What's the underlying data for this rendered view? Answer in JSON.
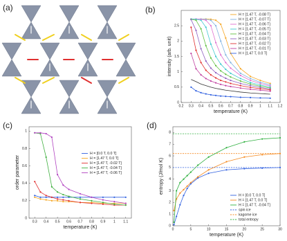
{
  "diagram": {
    "label": "(a)"
  },
  "chart_data": [
    {
      "type": "line",
      "label": "(b)",
      "xlabel": "temperature (K)",
      "ylabel": "intensity (arb. unit)",
      "xlim": [
        0.2,
        1.2
      ],
      "xticks": [
        0.2,
        0.3,
        0.4,
        0.5,
        0.6,
        0.7,
        0.8,
        0.9,
        1,
        1.1,
        1.2
      ],
      "ylim": [
        0,
        3
      ],
      "yticks": [
        0,
        0.5,
        1,
        1.5,
        2,
        2.5
      ],
      "legend": "upper right",
      "x": [
        0.3,
        0.35,
        0.4,
        0.45,
        0.5,
        0.55,
        0.6,
        0.65,
        0.7,
        0.8,
        0.9,
        1,
        1.1
      ],
      "series": [
        {
          "name": "H = [1.47 T, -0.08 T]",
          "color": "#f5a623",
          "values": [
            2.72,
            2.72,
            2.72,
            2.72,
            2.71,
            2.68,
            2.55,
            2.1,
            1.6,
            1.1,
            0.85,
            0.72,
            0.62
          ]
        },
        {
          "name": "H = [1.47 T, -0.07 T]",
          "color": "#7fb3e0",
          "values": [
            2.72,
            2.72,
            2.72,
            2.71,
            2.68,
            2.5,
            2.0,
            1.55,
            1.3,
            0.95,
            0.78,
            0.66,
            0.58
          ]
        },
        {
          "name": "H = [1.47 T, -0.06 T]",
          "color": "#e070d0",
          "values": [
            2.72,
            2.72,
            2.71,
            2.68,
            2.5,
            1.95,
            1.55,
            1.3,
            1.12,
            0.88,
            0.72,
            0.62,
            0.54
          ]
        },
        {
          "name": "H = [1.47 T, -0.05 T]",
          "color": "#40c8d0",
          "values": [
            2.72,
            2.71,
            2.68,
            2.45,
            1.9,
            1.5,
            1.25,
            1.08,
            0.95,
            0.78,
            0.65,
            0.57,
            0.5
          ]
        },
        {
          "name": "H = [1.47 T, -0.04 T]",
          "color": "#60c040",
          "values": [
            2.71,
            2.68,
            2.4,
            1.85,
            1.45,
            1.2,
            1.03,
            0.92,
            0.83,
            0.7,
            0.6,
            0.53,
            0.47
          ]
        },
        {
          "name": "H = [1.47 T, -0.03 T]",
          "color": "#9060c0",
          "values": [
            2.7,
            2.35,
            1.75,
            1.35,
            1.12,
            0.97,
            0.87,
            0.79,
            0.72,
            0.62,
            0.55,
            0.49,
            0.44
          ]
        },
        {
          "name": "H = [1.47 T, -0.02 T]",
          "color": "#e03030",
          "values": [
            2.45,
            1.7,
            1.3,
            1.05,
            0.9,
            0.8,
            0.72,
            0.67,
            0.62,
            0.55,
            0.49,
            0.45,
            0.41
          ]
        },
        {
          "name": "H = [1.47 T, -0.01 T]",
          "color": "#c040a0",
          "values": [
            1.6,
            1.1,
            0.9,
            0.78,
            0.7,
            0.64,
            0.59,
            0.55,
            0.52,
            0.47,
            0.43,
            0.4,
            0.37
          ]
        },
        {
          "name": "H = [1.47 T, 0.0 T]",
          "color": "#3060e0",
          "values": [
            0.5,
            0.38,
            0.32,
            0.28,
            0.25,
            0.23,
            0.21,
            0.2,
            0.19,
            0.17,
            0.16,
            0.15,
            0.14
          ]
        },
        {
          "name": null,
          "color": "#333333",
          "marker": false,
          "values": [
            0.75,
            0.68,
            0.6,
            0.55,
            0.5,
            0.46,
            0.43,
            0.4,
            0.38,
            0.34,
            0.31,
            0.29,
            0.27
          ]
        }
      ]
    },
    {
      "type": "line",
      "label": "(c)",
      "xlabel": "temperature (K)",
      "ylabel": "order parameter",
      "xlim": [
        0.25,
        1.15
      ],
      "xticks": [
        0.3,
        0.4,
        0.5,
        0.6,
        0.7,
        0.8,
        0.9,
        1,
        1.1
      ],
      "ylim": [
        0,
        1.05
      ],
      "yticks": [
        0,
        0.2,
        0.4,
        0.6,
        0.8,
        1
      ],
      "legend": "center right",
      "x": [
        0.3,
        0.35,
        0.4,
        0.45,
        0.5,
        0.55,
        0.6,
        0.7,
        0.8,
        0.9,
        1,
        1.1
      ],
      "series": [
        {
          "name": "H = [0.0 T, 0.0 T]",
          "color": "#3060e0",
          "values": [
            0.26,
            0.24,
            0.24,
            0.24,
            0.24,
            0.24,
            0.24,
            0.24,
            0.24,
            0.24,
            0.24,
            0.24
          ]
        },
        {
          "name": "H = [1.47 T, 0.0 T]",
          "color": "#f5a623",
          "values": [
            0.24,
            0.22,
            0.21,
            0.2,
            0.2,
            0.19,
            0.19,
            0.18,
            0.18,
            0.17,
            0.17,
            0.17
          ]
        },
        {
          "name": "H = [1.47 T, -0.02 T]",
          "color": "#e03030",
          "values": [
            0.42,
            0.3,
            0.26,
            0.24,
            0.22,
            0.21,
            0.2,
            0.18,
            0.17,
            0.16,
            0.15,
            0.15
          ]
        },
        {
          "name": "H = [1.47 T, -0.04 T]",
          "color": "#40b040",
          "values": [
            0.98,
            0.97,
            0.7,
            0.36,
            0.3,
            0.27,
            0.25,
            0.22,
            0.2,
            0.18,
            0.16,
            0.15
          ]
        },
        {
          "name": "H = [1.47 T, -0.06 T]",
          "color": "#b040c0",
          "values": [
            0.98,
            0.98,
            0.97,
            0.93,
            0.5,
            0.38,
            0.33,
            0.28,
            0.24,
            0.21,
            0.19,
            0.17
          ]
        }
      ]
    },
    {
      "type": "line",
      "label": "(d)",
      "xlabel": "temperature (K)",
      "ylabel": "entropy (J/mol K)",
      "xlim": [
        0,
        30
      ],
      "xticks": [
        0,
        5,
        10,
        15,
        20,
        25,
        30
      ],
      "ylim": [
        0,
        8.5
      ],
      "yticks": [
        0,
        1,
        2,
        3,
        4,
        5,
        6,
        7,
        8
      ],
      "legend": "lower right",
      "x": [
        0.3,
        1,
        2,
        3,
        4,
        5,
        7,
        10,
        15,
        20,
        25,
        30
      ],
      "series": [
        {
          "name": "H = [0.0 T, 0.0 T]",
          "color": "#3060e0",
          "values": [
            0.1,
            0.8,
            1.8,
            2.6,
            3.2,
            3.6,
            4.1,
            4.5,
            4.8,
            4.9,
            4.95,
            5.0
          ]
        },
        {
          "name": "H = [1.47 T, 0.0 T]",
          "color": "#f58a20",
          "values": [
            1.3,
            2.3,
            2.8,
            3.1,
            3.4,
            3.7,
            4.2,
            4.8,
            5.5,
            5.9,
            6.1,
            6.2
          ]
        },
        {
          "name": "H = [1.47 T, -0.04 T]",
          "color": "#30b040",
          "values": [
            0.3,
            3.0,
            3.7,
            4.0,
            4.3,
            4.6,
            5.2,
            5.9,
            6.7,
            7.2,
            7.45,
            7.55
          ]
        }
      ],
      "hlines": [
        {
          "name": "spin ice",
          "color": "#3060e0",
          "value": 5.0
        },
        {
          "name": "kagome ice",
          "color": "#f58a20",
          "value": 6.2
        },
        {
          "name": "total entropy",
          "color": "#30b040",
          "value": 7.9
        }
      ]
    }
  ]
}
